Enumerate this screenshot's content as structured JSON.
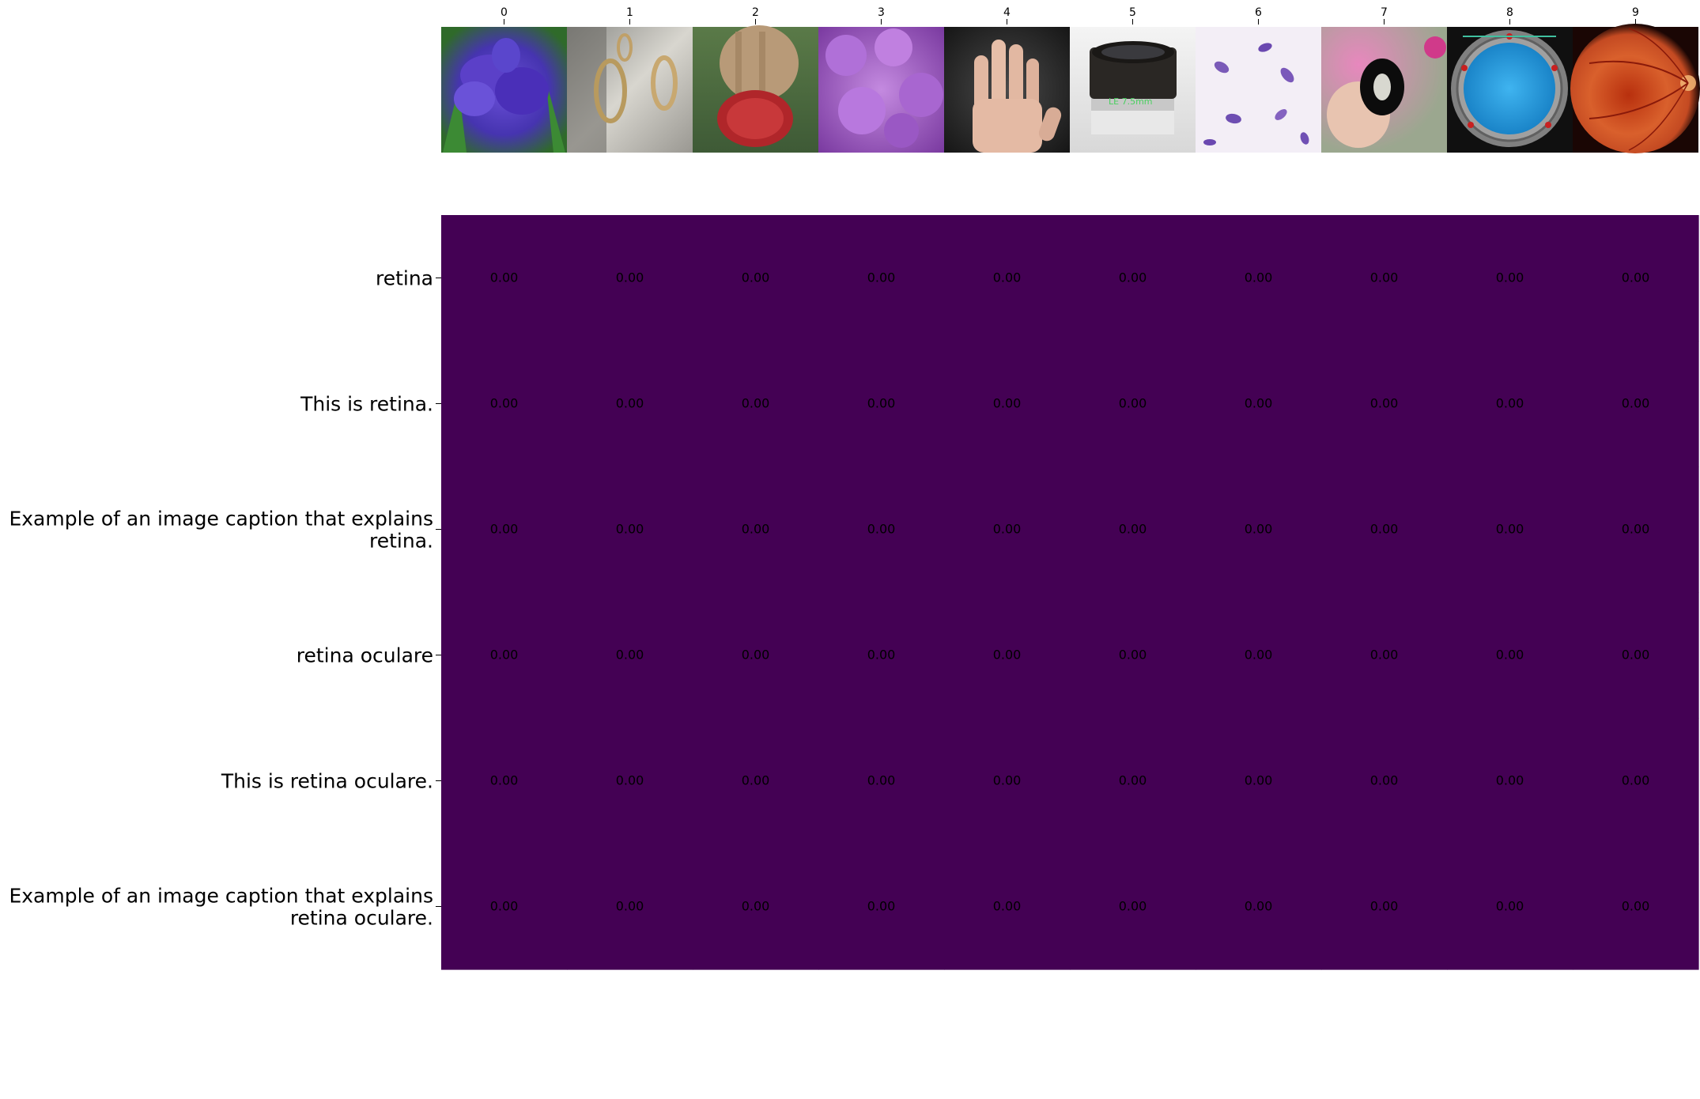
{
  "chart_data": {
    "type": "heatmap",
    "title": "",
    "xlabel": "",
    "ylabel": "",
    "x_tick_labels": [
      "0",
      "1",
      "2",
      "3",
      "4",
      "5",
      "6",
      "7",
      "8",
      "9"
    ],
    "thumbnails": [
      "purple-iris-flower",
      "sunlit-swirl-reflection",
      "braided-hair-red-knit-cap",
      "violet-bellflowers",
      "hand-on-dark-background",
      "camera-eyepiece-lens",
      "stained-parasite-cells",
      "hand-holding-black-washer",
      "stargate-ring-blue-disc",
      "retina-fundus"
    ],
    "rows": [
      [
        "retina"
      ],
      [
        "This is retina."
      ],
      [
        "Example of an image caption that explains",
        "retina."
      ],
      [
        "retina oculare"
      ],
      [
        "This is retina oculare."
      ],
      [
        "Example of an image caption that explains",
        "retina oculare."
      ]
    ],
    "values": [
      [
        0.0,
        0.0,
        0.0,
        0.0,
        0.0,
        0.0,
        0.0,
        0.0,
        0.0,
        0.0
      ],
      [
        0.0,
        0.0,
        0.0,
        0.0,
        0.0,
        0.0,
        0.0,
        0.0,
        0.0,
        0.0
      ],
      [
        0.0,
        0.0,
        0.0,
        0.0,
        0.0,
        0.0,
        0.0,
        0.0,
        0.0,
        0.0
      ],
      [
        0.0,
        0.0,
        0.0,
        0.0,
        0.0,
        0.0,
        0.0,
        0.0,
        0.0,
        0.0
      ],
      [
        0.0,
        0.0,
        0.0,
        0.0,
        0.0,
        0.0,
        0.0,
        0.0,
        0.0,
        0.0
      ],
      [
        0.0,
        0.0,
        0.0,
        0.0,
        0.0,
        0.0,
        0.0,
        0.0,
        0.0,
        0.0
      ]
    ],
    "value_format_decimals": 2,
    "colormap": "viridis",
    "vmin": 0,
    "vmax": 1,
    "colors": {
      "cell_low": "#440154",
      "annotation_text": "#000000",
      "axis": "#000000",
      "background": "#ffffff"
    },
    "grid": false,
    "legend": "none"
  }
}
